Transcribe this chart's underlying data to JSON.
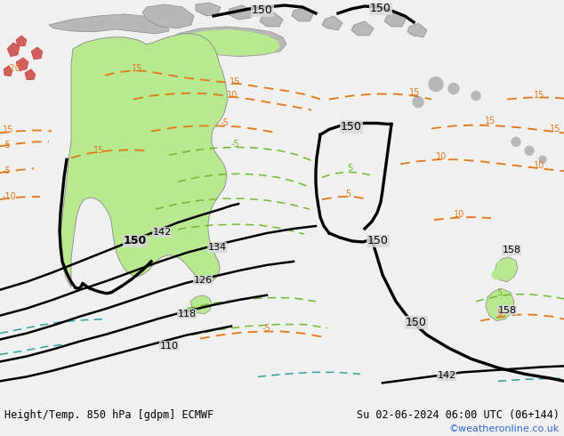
{
  "title_left": "Height/Temp. 850 hPa [gdpm] ECMWF",
  "title_right": "Su 02-06-2024 06:00 UTC (06+144)",
  "credit": "©weatheronline.co.uk",
  "bg_color": "#d8d8d8",
  "land_color": "#c8e8a0",
  "aus_color": "#b8e890",
  "gray_land_color": "#b8b8b8",
  "red_land_color": "#d06060",
  "fig_width": 6.34,
  "fig_height": 4.9,
  "dpi": 100,
  "footer_bg": "#f0f0f0",
  "footer_fontsize": 8.5,
  "credit_fontsize": 8,
  "credit_color": "#3366cc",
  "black_lw": 1.8,
  "thick_lw": 2.4,
  "orange_color": "#e07818",
  "green_color": "#70b830",
  "cyan_color": "#30a0a0",
  "orange_lw": 1.3,
  "green_lw": 1.1,
  "cyan_lw": 1.1
}
